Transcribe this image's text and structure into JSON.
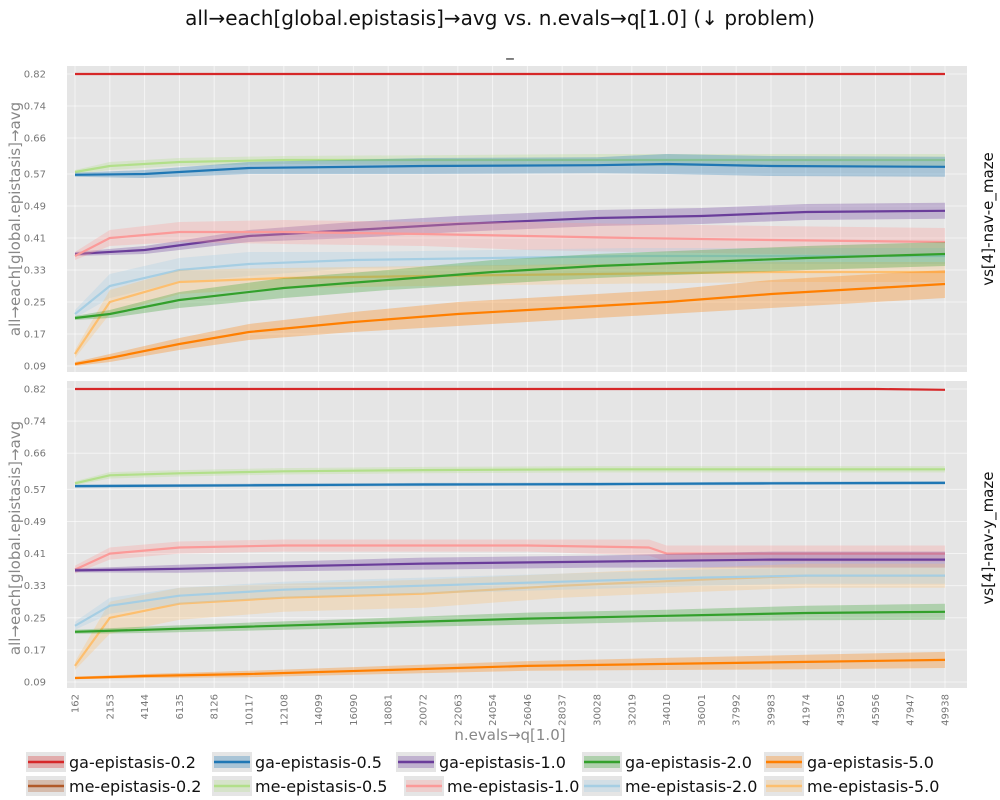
{
  "chart_data": {
    "type": "line",
    "title": "all→each[global.epistasis]→avg vs. n.evals→q[1.0] (↓ problem)",
    "subtitle": "_",
    "xlabel": "n.evals→q[1.0]",
    "ylabel": "all→each[global.epistasis]→avg",
    "x_ticks": [
      162,
      2153,
      4144,
      6135,
      8126,
      10117,
      12108,
      14099,
      16090,
      18081,
      20072,
      22063,
      24054,
      26046,
      28037,
      30028,
      32019,
      34010,
      36001,
      37992,
      39983,
      41974,
      43965,
      45956,
      47947,
      49938
    ],
    "y_ticks": [
      "0.09",
      "0.17",
      "0.25",
      "0.33",
      "0.41",
      "0.49",
      "0.57",
      "0.66",
      "0.74",
      "0.82"
    ],
    "xlim": [
      162,
      49938
    ],
    "grid": true,
    "legend_position": "bottom",
    "legend": [
      {
        "name": "ga-epistasis-0.2",
        "color": "#d62728"
      },
      {
        "name": "ga-epistasis-0.5",
        "color": "#1f77b4"
      },
      {
        "name": "ga-epistasis-1.0",
        "color": "#6a3d9a"
      },
      {
        "name": "ga-epistasis-2.0",
        "color": "#33a02c"
      },
      {
        "name": "ga-epistasis-5.0",
        "color": "#ff7f00"
      },
      {
        "name": "me-epistasis-0.2",
        "color": "#b15928"
      },
      {
        "name": "me-epistasis-0.5",
        "color": "#b2df8a"
      },
      {
        "name": "me-epistasis-1.0",
        "color": "#fb9a99"
      },
      {
        "name": "me-epistasis-2.0",
        "color": "#a6cee3"
      },
      {
        "name": "me-epistasis-5.0",
        "color": "#fdbf6f"
      }
    ],
    "panels": [
      {
        "label": "vs[4]-nav-e_maze",
        "ylim": [
          0.09,
          0.82
        ],
        "series": [
          {
            "name": "ga-epistasis-0.2",
            "x": [
              162,
              10117,
              20072,
              30028,
              40000,
              49938
            ],
            "y": [
              0.82,
              0.82,
              0.82,
              0.82,
              0.82,
              0.82
            ],
            "band": [
              0.0,
              0.0,
              0.0,
              0.0,
              0.0,
              0.0
            ]
          },
          {
            "name": "me-epistasis-0.5",
            "x": [
              162,
              2153,
              6135,
              12108,
              20072,
              30028,
              40000,
              49938
            ],
            "y": [
              0.575,
              0.59,
              0.6,
              0.605,
              0.605,
              0.605,
              0.605,
              0.605
            ],
            "band": [
              0.005,
              0.01,
              0.01,
              0.01,
              0.012,
              0.015,
              0.015,
              0.015
            ]
          },
          {
            "name": "ga-epistasis-0.5",
            "x": [
              162,
              4144,
              10117,
              20072,
              30028,
              34010,
              40000,
              49938
            ],
            "y": [
              0.568,
              0.57,
              0.585,
              0.59,
              0.592,
              0.595,
              0.59,
              0.588
            ],
            "band": [
              0.005,
              0.01,
              0.015,
              0.02,
              0.02,
              0.025,
              0.025,
              0.025
            ]
          },
          {
            "name": "ga-epistasis-1.0",
            "x": [
              162,
              4144,
              10117,
              16090,
              22063,
              30028,
              36001,
              42000,
              49938
            ],
            "y": [
              0.37,
              0.38,
              0.415,
              0.43,
              0.445,
              0.46,
              0.465,
              0.475,
              0.478
            ],
            "band": [
              0.005,
              0.01,
              0.015,
              0.02,
              0.02,
              0.02,
              0.02,
              0.02,
              0.02
            ]
          },
          {
            "name": "me-epistasis-1.0",
            "x": [
              162,
              2153,
              6135,
              12108,
              20072,
              26046,
              32019,
              40000,
              49938
            ],
            "y": [
              0.365,
              0.41,
              0.425,
              0.425,
              0.42,
              0.415,
              0.41,
              0.405,
              0.4
            ],
            "band": [
              0.01,
              0.02,
              0.025,
              0.03,
              0.03,
              0.035,
              0.035,
              0.035,
              0.035
            ]
          },
          {
            "name": "me-epistasis-2.0",
            "x": [
              162,
              2153,
              6135,
              10117,
              16090,
              24054,
              32019,
              40000,
              49938
            ],
            "y": [
              0.22,
              0.29,
              0.33,
              0.345,
              0.355,
              0.36,
              0.365,
              0.365,
              0.365
            ],
            "band": [
              0.01,
              0.03,
              0.03,
              0.03,
              0.02,
              0.02,
              0.02,
              0.02,
              0.02
            ]
          },
          {
            "name": "me-epistasis-5.0",
            "x": [
              162,
              2153,
              6135,
              12108,
              20072,
              30028,
              40000,
              49938
            ],
            "y": [
              0.12,
              0.25,
              0.3,
              0.31,
              0.315,
              0.32,
              0.325,
              0.325
            ],
            "band": [
              0.01,
              0.03,
              0.03,
              0.025,
              0.025,
              0.025,
              0.025,
              0.025
            ]
          },
          {
            "name": "ga-epistasis-2.0",
            "x": [
              162,
              2153,
              6135,
              12108,
              18081,
              24054,
              30028,
              36001,
              42000,
              49938
            ],
            "y": [
              0.21,
              0.22,
              0.255,
              0.285,
              0.305,
              0.325,
              0.34,
              0.35,
              0.36,
              0.37
            ],
            "band": [
              0.005,
              0.01,
              0.02,
              0.025,
              0.025,
              0.03,
              0.03,
              0.03,
              0.03,
              0.03
            ]
          },
          {
            "name": "ga-epistasis-5.0",
            "x": [
              162,
              2153,
              6135,
              10117,
              16090,
              22063,
              28037,
              34010,
              40000,
              45956,
              49938
            ],
            "y": [
              0.095,
              0.11,
              0.145,
              0.175,
              0.2,
              0.22,
              0.235,
              0.25,
              0.27,
              0.285,
              0.295
            ],
            "band": [
              0.005,
              0.01,
              0.015,
              0.02,
              0.025,
              0.03,
              0.03,
              0.03,
              0.035,
              0.035,
              0.035
            ]
          }
        ]
      },
      {
        "label": "vs[4]-nav-y_maze",
        "ylim": [
          0.09,
          0.82
        ],
        "series": [
          {
            "name": "ga-epistasis-0.2",
            "x": [
              162,
              10117,
              20072,
              30028,
              40000,
              45956,
              49938
            ],
            "y": [
              0.82,
              0.82,
              0.82,
              0.82,
              0.82,
              0.82,
              0.818
            ],
            "band": [
              0.0,
              0.0,
              0.0,
              0.0,
              0.0,
              0.0,
              0.0
            ]
          },
          {
            "name": "me-epistasis-0.5",
            "x": [
              162,
              2153,
              6135,
              12108,
              20072,
              30028,
              40000,
              49938
            ],
            "y": [
              0.585,
              0.605,
              0.61,
              0.615,
              0.618,
              0.62,
              0.62,
              0.62
            ],
            "band": [
              0.005,
              0.008,
              0.008,
              0.008,
              0.008,
              0.008,
              0.008,
              0.008
            ]
          },
          {
            "name": "ga-epistasis-0.5",
            "x": [
              162,
              10117,
              20072,
              30028,
              40000,
              49938
            ],
            "y": [
              0.578,
              0.58,
              0.582,
              0.583,
              0.585,
              0.586
            ],
            "band": [
              0.004,
              0.004,
              0.004,
              0.004,
              0.004,
              0.004
            ]
          },
          {
            "name": "me-epistasis-1.0",
            "x": [
              162,
              2153,
              6135,
              12108,
              20072,
              26046,
              33000,
              34010,
              40000,
              49938
            ],
            "y": [
              0.37,
              0.41,
              0.425,
              0.43,
              0.43,
              0.43,
              0.425,
              0.41,
              0.41,
              0.41
            ],
            "band": [
              0.01,
              0.015,
              0.015,
              0.015,
              0.015,
              0.015,
              0.02,
              0.02,
              0.02,
              0.02
            ]
          },
          {
            "name": "ga-epistasis-1.0",
            "x": [
              162,
              6135,
              12108,
              20072,
              30028,
              40000,
              49938
            ],
            "y": [
              0.368,
              0.372,
              0.378,
              0.385,
              0.39,
              0.395,
              0.395
            ],
            "band": [
              0.005,
              0.01,
              0.012,
              0.015,
              0.015,
              0.02,
              0.02
            ]
          },
          {
            "name": "me-epistasis-5.0",
            "x": [
              162,
              2153,
              6135,
              12108,
              20072,
              28037,
              36001,
              42000,
              49938
            ],
            "y": [
              0.13,
              0.25,
              0.285,
              0.3,
              0.31,
              0.33,
              0.345,
              0.355,
              0.355
            ],
            "band": [
              0.01,
              0.04,
              0.04,
              0.035,
              0.035,
              0.03,
              0.03,
              0.03,
              0.03
            ]
          },
          {
            "name": "me-epistasis-2.0",
            "x": [
              162,
              2153,
              6135,
              12108,
              20072,
              28037,
              36001,
              42000,
              49938
            ],
            "y": [
              0.23,
              0.28,
              0.305,
              0.32,
              0.33,
              0.34,
              0.35,
              0.355,
              0.355
            ],
            "band": [
              0.01,
              0.02,
              0.02,
              0.02,
              0.02,
              0.02,
              0.02,
              0.02,
              0.02
            ]
          },
          {
            "name": "ga-epistasis-2.0",
            "x": [
              162,
              4144,
              10117,
              18081,
              26046,
              34010,
              42000,
              49938
            ],
            "y": [
              0.215,
              0.22,
              0.228,
              0.238,
              0.248,
              0.255,
              0.262,
              0.265
            ],
            "band": [
              0.005,
              0.008,
              0.01,
              0.012,
              0.015,
              0.015,
              0.018,
              0.02
            ]
          },
          {
            "name": "ga-epistasis-5.0",
            "x": [
              162,
              4144,
              10117,
              18081,
              26046,
              34010,
              42000,
              49938
            ],
            "y": [
              0.1,
              0.105,
              0.11,
              0.12,
              0.13,
              0.135,
              0.14,
              0.145
            ],
            "band": [
              0.003,
              0.005,
              0.008,
              0.01,
              0.012,
              0.015,
              0.018,
              0.02
            ]
          }
        ]
      }
    ]
  }
}
